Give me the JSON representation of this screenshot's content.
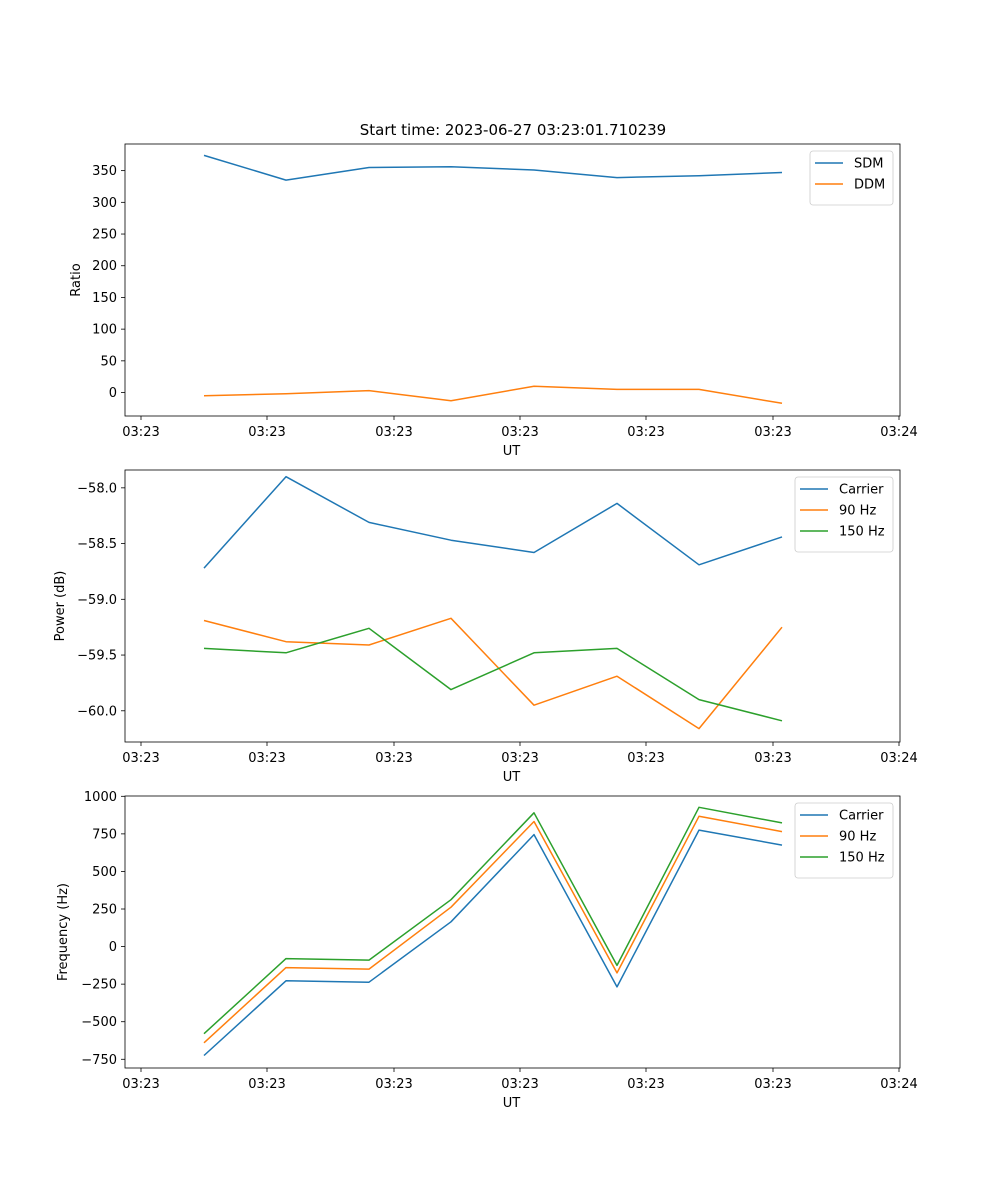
{
  "figure_title": "Start time: 2023-06-27 03:23:01.710239",
  "colors": {
    "blue": "#1f77b4",
    "orange": "#ff7f0e",
    "green": "#2ca02c"
  },
  "chart_data": [
    {
      "type": "line",
      "title": "Start time: 2023-06-27 03:23:01.710239",
      "xlabel": "UT",
      "ylabel": "Ratio",
      "x_tick_labels": [
        "03:23",
        "03:23",
        "03:23",
        "03:23",
        "03:23",
        "03:23",
        "03:24"
      ],
      "y_ticks": [
        0,
        50,
        100,
        150,
        200,
        250,
        300,
        350
      ],
      "y_tick_labels": [
        "0",
        "50",
        "100",
        "150",
        "200",
        "250",
        "300",
        "350"
      ],
      "ylim": [
        -37,
        392
      ],
      "legend_position": "upper-right",
      "series": [
        {
          "name": "SDM",
          "color": "#1f77b4",
          "values": [
            374,
            335,
            355,
            356,
            351,
            339,
            342,
            347
          ]
        },
        {
          "name": "DDM",
          "color": "#ff7f0e",
          "values": [
            -5,
            -2,
            3,
            -13,
            10,
            5,
            5,
            -17
          ]
        }
      ]
    },
    {
      "type": "line",
      "xlabel": "UT",
      "ylabel": "Power (dB)",
      "x_tick_labels": [
        "03:23",
        "03:23",
        "03:23",
        "03:23",
        "03:23",
        "03:23",
        "03:24"
      ],
      "y_ticks": [
        -58.0,
        -58.5,
        -59.0,
        -59.5,
        -60.0
      ],
      "y_tick_labels": [
        "−58.0",
        "−58.5",
        "−59.0",
        "−59.5",
        "−60.0"
      ],
      "ylim": [
        -60.28,
        -57.84
      ],
      "legend_position": "upper-right",
      "series": [
        {
          "name": "Carrier",
          "color": "#1f77b4",
          "values": [
            -58.72,
            -57.9,
            -58.31,
            -58.47,
            -58.58,
            -58.14,
            -58.69,
            -58.44
          ]
        },
        {
          "name": "90 Hz",
          "color": "#ff7f0e",
          "values": [
            -59.19,
            -59.38,
            -59.41,
            -59.17,
            -59.95,
            -59.69,
            -60.16,
            -59.25
          ]
        },
        {
          "name": "150 Hz",
          "color": "#2ca02c",
          "values": [
            -59.44,
            -59.48,
            -59.26,
            -59.81,
            -59.48,
            -59.44,
            -59.9,
            -60.09
          ]
        }
      ]
    },
    {
      "type": "line",
      "xlabel": "UT",
      "ylabel": "Frequency (Hz)",
      "x_tick_labels": [
        "03:23",
        "03:23",
        "03:23",
        "03:23",
        "03:23",
        "03:23",
        "03:24"
      ],
      "y_ticks": [
        -750,
        -500,
        -250,
        0,
        250,
        500,
        750,
        1000
      ],
      "y_tick_labels": [
        "−750",
        "−500",
        "−250",
        "0",
        "250",
        "500",
        "750",
        "1000"
      ],
      "ylim": [
        -808,
        1002
      ],
      "legend_position": "upper-right",
      "series": [
        {
          "name": "Carrier",
          "color": "#1f77b4",
          "values": [
            -725,
            -228,
            -237,
            165,
            745,
            -268,
            775,
            675
          ]
        },
        {
          "name": "90 Hz",
          "color": "#ff7f0e",
          "values": [
            -640,
            -140,
            -150,
            262,
            832,
            -175,
            867,
            765
          ]
        },
        {
          "name": "150 Hz",
          "color": "#2ca02c",
          "values": [
            -580,
            -80,
            -90,
            312,
            890,
            -125,
            927,
            823
          ]
        }
      ]
    }
  ]
}
